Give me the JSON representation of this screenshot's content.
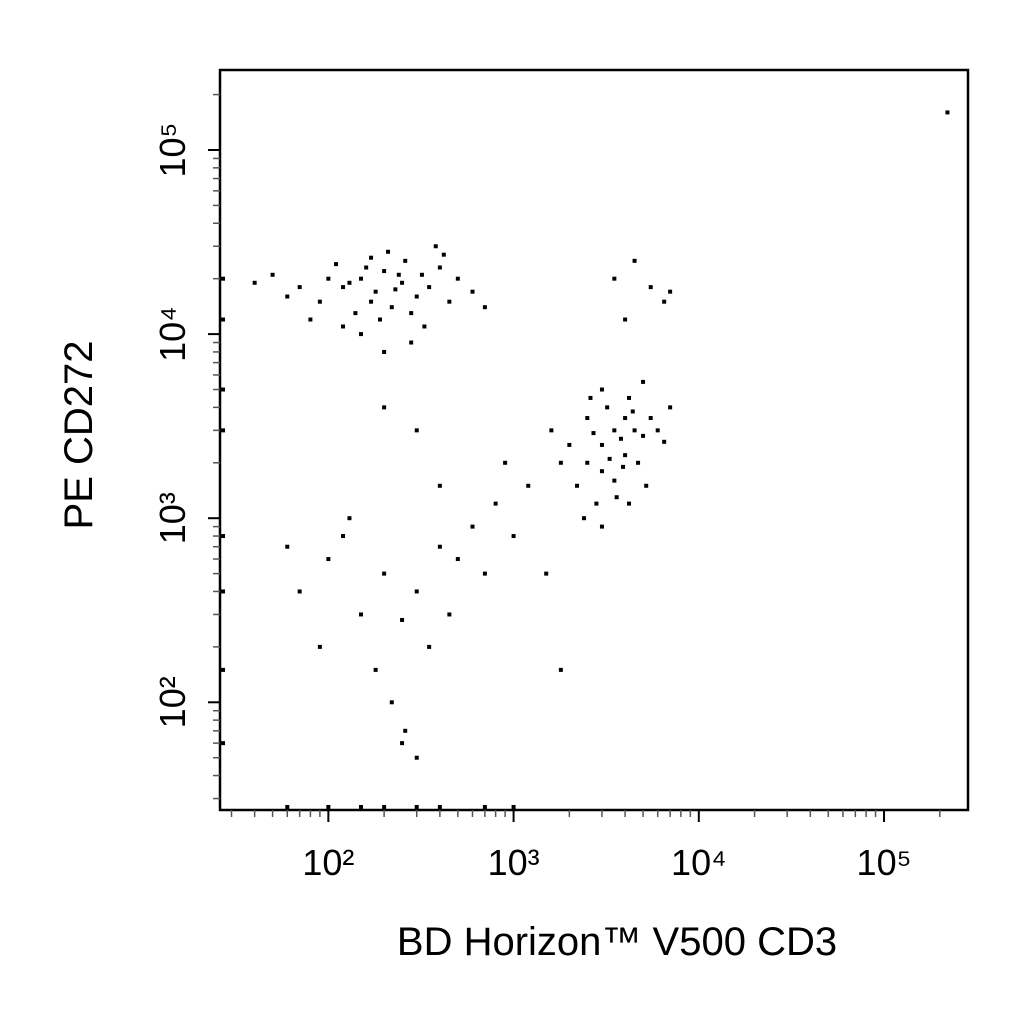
{
  "chart_data": {
    "type": "scatter",
    "x_label": "BD Horizon™ V500  CD3",
    "y_label": "PE  CD272",
    "log_scale": true,
    "color": "#000000",
    "xlim": [
      26,
      284000
    ],
    "ylim": [
      26,
      272000
    ],
    "xticks": [
      {
        "value": 100,
        "label": "10²"
      },
      {
        "value": 1000,
        "label": "10³"
      },
      {
        "value": 10000,
        "label": "10⁴"
      },
      {
        "value": 100000,
        "label": "10⁵"
      }
    ],
    "yticks": [
      {
        "value": 100,
        "label": "10²"
      },
      {
        "value": 1000,
        "label": "10³"
      },
      {
        "value": 10000,
        "label": "10⁴"
      },
      {
        "value": 100000,
        "label": "10⁵"
      }
    ],
    "xminorticks": [
      30,
      40,
      50,
      60,
      70,
      80,
      90,
      200,
      300,
      400,
      500,
      600,
      700,
      800,
      900,
      2000,
      3000,
      4000,
      5000,
      6000,
      7000,
      8000,
      9000,
      20000,
      30000,
      40000,
      50000,
      60000,
      70000,
      80000,
      90000,
      200000
    ],
    "yminorticks": [
      30,
      40,
      50,
      60,
      70,
      80,
      90,
      200,
      300,
      400,
      500,
      600,
      700,
      800,
      900,
      2000,
      3000,
      4000,
      5000,
      6000,
      7000,
      8000,
      9000,
      20000,
      30000,
      40000,
      50000,
      60000,
      70000,
      80000,
      90000,
      200000
    ],
    "x": [
      120,
      150,
      180,
      200,
      250,
      300,
      90,
      110,
      140,
      170,
      220,
      260,
      320,
      350,
      400,
      130,
      160,
      190,
      230,
      280,
      100,
      70,
      60,
      50,
      40,
      80,
      210,
      380,
      420,
      450,
      500,
      600,
      700,
      280,
      200,
      150,
      330,
      120,
      170,
      240,
      2500,
      3000,
      3500,
      4000,
      4500,
      3000,
      2200,
      2800,
      3500,
      4000,
      5000,
      5500,
      6000,
      2000,
      2500,
      3200,
      4200,
      3800,
      2700,
      3300,
      4700,
      6500,
      7000,
      1800,
      1600,
      2400,
      3000,
      3600,
      4200,
      5200,
      5000,
      3000,
      2600,
      4400,
      3900,
      3500,
      4500,
      5500,
      6500,
      4000,
      7000,
      150,
      200,
      250,
      300,
      350,
      400,
      500,
      600,
      700,
      800,
      120,
      100,
      180,
      220,
      260,
      300,
      90,
      60,
      70,
      450,
      1000,
      1200,
      900,
      400,
      300,
      200,
      1500,
      1800,
      250,
      130,
      27,
      27,
      27,
      27,
      27,
      27,
      27,
      27,
      60,
      100,
      150,
      200,
      300,
      400,
      700,
      1000,
      220000
    ],
    "y": [
      18000,
      20000,
      17000,
      22000,
      19000,
      16000,
      15000,
      24000,
      13000,
      15000,
      14000,
      25000,
      21000,
      18000,
      23000,
      19000,
      23000,
      12000,
      17500,
      13000,
      20000,
      18000,
      16000,
      21000,
      19000,
      12000,
      28000,
      30000,
      27000,
      15000,
      20000,
      17000,
      14000,
      9000,
      8000,
      10000,
      11000,
      11000,
      26000,
      21000,
      2000,
      2500,
      3000,
      3500,
      3000,
      1800,
      1500,
      1200,
      1600,
      2200,
      2800,
      3500,
      3000,
      2500,
      3500,
      4000,
      4500,
      2700,
      2900,
      2100,
      2000,
      2600,
      4000,
      2000,
      3000,
      1000,
      900,
      1300,
      1200,
      1500,
      5500,
      5000,
      4500,
      3800,
      1900,
      20000,
      25000,
      18000,
      15000,
      12000,
      17000,
      300,
      500,
      280,
      400,
      200,
      700,
      600,
      900,
      500,
      1200,
      800,
      600,
      150,
      100,
      70,
      50,
      200,
      700,
      400,
      300,
      800,
      1500,
      2000,
      1500,
      3000,
      4000,
      500,
      150,
      60,
      1000,
      20000,
      5000,
      800,
      150,
      60,
      3000,
      12000,
      400,
      27,
      27,
      27,
      27,
      27,
      27,
      27,
      27,
      160000
    ]
  }
}
